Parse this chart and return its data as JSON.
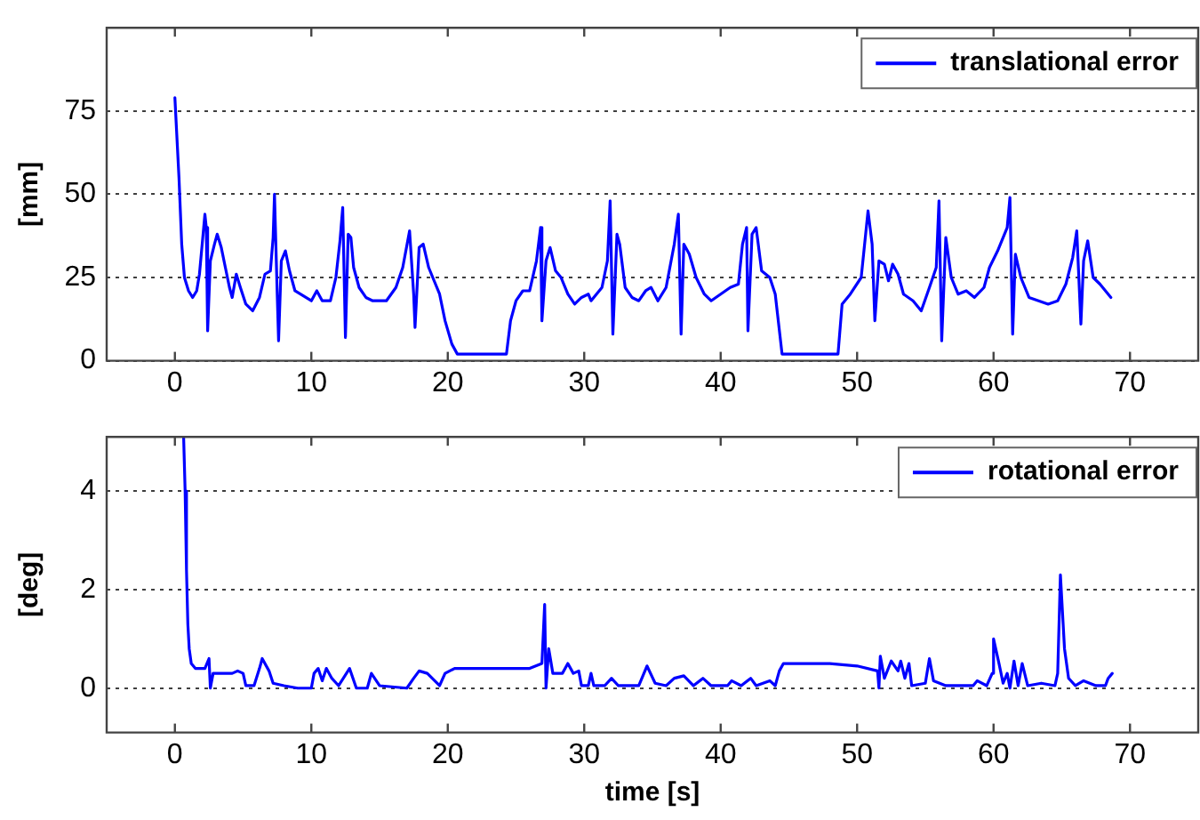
{
  "chart_data": [
    {
      "type": "line",
      "ylabel": "[mm]",
      "xlim": [
        -5,
        75
      ],
      "xticks": [
        0,
        10,
        20,
        30,
        40,
        50,
        60,
        70
      ],
      "ylim": [
        0,
        100
      ],
      "yticks": [
        0,
        25,
        50,
        75
      ],
      "grid": "y",
      "legend": "top right",
      "marker": "none",
      "line_style": "solid",
      "x": [
        0,
        0.3,
        0.5,
        0.7,
        1.0,
        1.3,
        1.6,
        1.8,
        2.0,
        2.2,
        2.3,
        2.4,
        2.6,
        2.9,
        3.1,
        3.4,
        3.7,
        4.0,
        4.2,
        4.5,
        4.8,
        5.2,
        5.7,
        6.2,
        6.6,
        7.0,
        7.2,
        7.3,
        7.5,
        7.6,
        7.8,
        8.1,
        8.4,
        8.8,
        9.2,
        9.6,
        10.0,
        10.4,
        10.8,
        11.4,
        11.8,
        12.1,
        12.3,
        12.5,
        12.7,
        12.9,
        13.1,
        13.5,
        14,
        14.5,
        15,
        15.5,
        16.2,
        16.7,
        17.2,
        17.5,
        17.6,
        17.9,
        18.2,
        18.6,
        19.0,
        19.4,
        19.8,
        20.3,
        20.7,
        24.3,
        24.6,
        25.0,
        25.5,
        26.0,
        26.5,
        26.8,
        26.9,
        27.2,
        27.5,
        27.9,
        28.3,
        28.8,
        29.3,
        29.8,
        30.3,
        30.5,
        31.3,
        31.7,
        31.9,
        32.1,
        32.4,
        32.6,
        33,
        33.5,
        34,
        34.5,
        34.9,
        35.4,
        36,
        36.6,
        36.9,
        37.1,
        37.3,
        37.7,
        38.2,
        38.8,
        39.3,
        40,
        40.7,
        41.3,
        41.6,
        41.9,
        42.0,
        42.3,
        42.6,
        43,
        43.6,
        44,
        44.5,
        48.6,
        48.9,
        49.5,
        50.3,
        50.8,
        51.1,
        51.3,
        51.6,
        52,
        52.3,
        52.6,
        53,
        53.4,
        54.1,
        54.7,
        55.3,
        55.8,
        56.0,
        56.2,
        56.5,
        56.9,
        57.4,
        58,
        58.6,
        59.3,
        59.7,
        60.3,
        61.0,
        61.2,
        61.4,
        61.6,
        62,
        62.6,
        63.3,
        64,
        64.7,
        65.3,
        65.8,
        66.1,
        66.4,
        66.6,
        66.9,
        67.3,
        67.8,
        68.2,
        68.6
      ],
      "series": [
        {
          "name": "translational error",
          "color": "#0000ff",
          "values": [
            79,
            55,
            35,
            25,
            21,
            19,
            21,
            26,
            35,
            44,
            40,
            9,
            30,
            35,
            38,
            34,
            28,
            22,
            19,
            26,
            22,
            17,
            15,
            19,
            26,
            27,
            37,
            50,
            20,
            6,
            30,
            33,
            27,
            21,
            20,
            19,
            18,
            21,
            18,
            18,
            25,
            36,
            46,
            7,
            38,
            37,
            28,
            22,
            19,
            18,
            18,
            18,
            22,
            28,
            39,
            20,
            10,
            34,
            35,
            28,
            24,
            20,
            12,
            5,
            2,
            2,
            12,
            18,
            21,
            21,
            30,
            40,
            12,
            30,
            34,
            27,
            25,
            20,
            17,
            19,
            20,
            18,
            22,
            30,
            48,
            8,
            38,
            35,
            22,
            19,
            18,
            21,
            22,
            18,
            22,
            35,
            44,
            8,
            35,
            32,
            25,
            20,
            18,
            20,
            22,
            23,
            35,
            40,
            9,
            38,
            40,
            27,
            25,
            20,
            2,
            2,
            17,
            20,
            25,
            45,
            35,
            12,
            30,
            29,
            24,
            29,
            26,
            20,
            18,
            15,
            22,
            28,
            48,
            6,
            37,
            25,
            20,
            21,
            19,
            22,
            28,
            33,
            40,
            49,
            8,
            32,
            25,
            19,
            18,
            17,
            18,
            23,
            31,
            39,
            11,
            30,
            36,
            25,
            23,
            21,
            19
          ]
        }
      ]
    },
    {
      "type": "line",
      "ylabel": "[deg]",
      "xlabel": "time [s]",
      "xlim": [
        -5,
        75
      ],
      "xticks": [
        0,
        10,
        20,
        30,
        40,
        50,
        60,
        70
      ],
      "ylim": [
        -0.9,
        5.1
      ],
      "yticks": [
        0,
        2,
        4
      ],
      "grid": "y",
      "legend": "top right",
      "marker": "none",
      "line_style": "solid",
      "x": [
        0.64,
        0.75,
        0.85,
        0.95,
        1.05,
        1.2,
        1.5,
        2.2,
        2.5,
        2.6,
        2.8,
        3.5,
        4.2,
        4.6,
        5.0,
        5.2,
        5.8,
        6.2,
        6.4,
        6.9,
        7.2,
        8,
        9,
        10,
        10.2,
        10.5,
        10.8,
        11.1,
        11.5,
        12,
        12.8,
        13.3,
        14.1,
        14.4,
        15,
        17,
        17.5,
        17.9,
        18.5,
        19.4,
        19.8,
        20.5,
        25,
        26,
        26.9,
        27.1,
        27.2,
        27.4,
        27.7,
        28.4,
        28.8,
        29.2,
        29.6,
        29.8,
        30.3,
        30.5,
        30.7,
        31.5,
        32.0,
        32.5,
        34,
        34.6,
        35.2,
        36,
        36.6,
        37.3,
        38,
        38.7,
        39.3,
        40.5,
        40.8,
        41.5,
        42.2,
        42.6,
        43.6,
        44,
        44.3,
        44.6,
        48,
        50,
        51.5,
        51.6,
        51.7,
        52,
        52.5,
        53,
        53.2,
        53.5,
        53.8,
        54,
        55,
        55.3,
        55.6,
        56.5,
        58.5,
        58.8,
        59.5,
        59.9,
        60.0,
        60.4,
        60.7,
        61,
        61.2,
        61.5,
        61.8,
        62.1,
        62.5,
        63.5,
        64.5,
        64.7,
        64.9,
        65.2,
        65.5,
        66,
        66.6,
        67.5,
        68.2,
        68.4,
        68.7
      ],
      "series": [
        {
          "name": "rotational error",
          "color": "#0000ff",
          "values": [
            5.1,
            4.0,
            2.4,
            1.3,
            0.8,
            0.5,
            0.4,
            0.4,
            0.6,
            0,
            0.3,
            0.3,
            0.3,
            0.35,
            0.3,
            0.05,
            0.05,
            0.4,
            0.6,
            0.35,
            0.1,
            0.05,
            0,
            0,
            0.3,
            0.4,
            0.15,
            0.4,
            0.2,
            0.05,
            0.4,
            0,
            0,
            0.3,
            0.05,
            0,
            0.2,
            0.35,
            0.3,
            0.05,
            0.3,
            0.4,
            0.4,
            0.4,
            0.5,
            1.7,
            0,
            0.8,
            0.3,
            0.3,
            0.5,
            0.3,
            0.35,
            0.05,
            0.05,
            0.3,
            0.05,
            0.05,
            0.2,
            0.05,
            0.05,
            0.45,
            0.1,
            0.05,
            0.2,
            0.25,
            0.05,
            0.2,
            0.05,
            0.05,
            0.15,
            0.05,
            0.2,
            0.05,
            0.15,
            0.05,
            0.35,
            0.5,
            0.5,
            0.45,
            0.35,
            0,
            0.65,
            0.2,
            0.55,
            0.35,
            0.55,
            0.2,
            0.5,
            0.05,
            0.1,
            0.6,
            0.15,
            0.05,
            0.05,
            0.15,
            0.05,
            0.3,
            1.0,
            0.5,
            0.1,
            0.3,
            0,
            0.55,
            0.05,
            0.5,
            0.05,
            0.1,
            0.05,
            0.3,
            2.3,
            0.8,
            0.2,
            0.05,
            0.15,
            0.05,
            0.05,
            0.2,
            0.3
          ]
        }
      ]
    }
  ]
}
